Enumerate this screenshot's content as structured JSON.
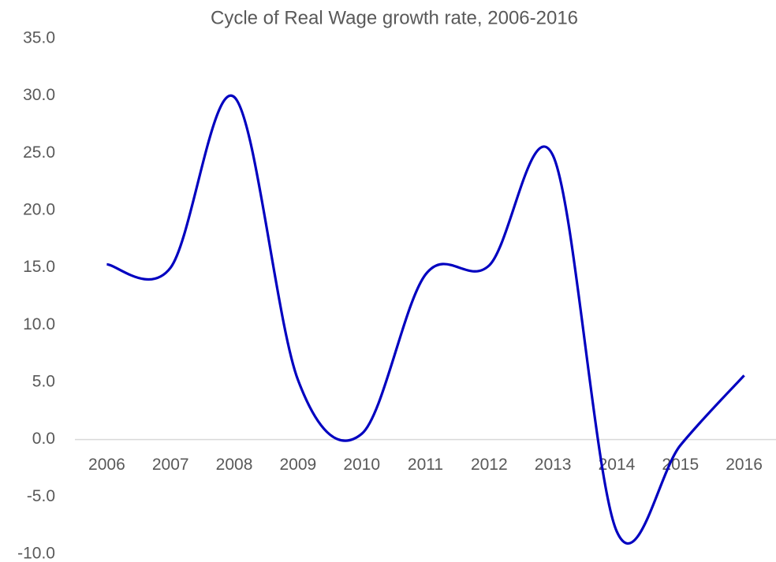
{
  "chart_data": {
    "type": "line",
    "title": "Cycle of Real Wage growth rate, 2006-2016",
    "categories": [
      "2006",
      "2007",
      "2008",
      "2009",
      "2010",
      "2011",
      "2012",
      "2013",
      "2014",
      "2015",
      "2016"
    ],
    "series": [
      {
        "name": "Real Wage growth rate",
        "color": "#0000c0",
        "values": [
          15.3,
          15.0,
          29.9,
          5.2,
          0.5,
          14.4,
          15.2,
          24.8,
          -8.0,
          -0.5,
          5.6
        ]
      }
    ],
    "ylim": [
      -10,
      35
    ],
    "yticks": [
      {
        "value": -10,
        "label": "-10.0"
      },
      {
        "value": -5,
        "label": "-5.0"
      },
      {
        "value": 0,
        "label": "0.0"
      },
      {
        "value": 5,
        "label": "5.0"
      },
      {
        "value": 10,
        "label": "10.0"
      },
      {
        "value": 15,
        "label": "15.0"
      },
      {
        "value": 20,
        "label": "20.0"
      },
      {
        "value": 25,
        "label": "25.0"
      },
      {
        "value": 30,
        "label": "30.0"
      },
      {
        "value": 35,
        "label": "35.0"
      }
    ],
    "grid": false,
    "smooth": true
  }
}
